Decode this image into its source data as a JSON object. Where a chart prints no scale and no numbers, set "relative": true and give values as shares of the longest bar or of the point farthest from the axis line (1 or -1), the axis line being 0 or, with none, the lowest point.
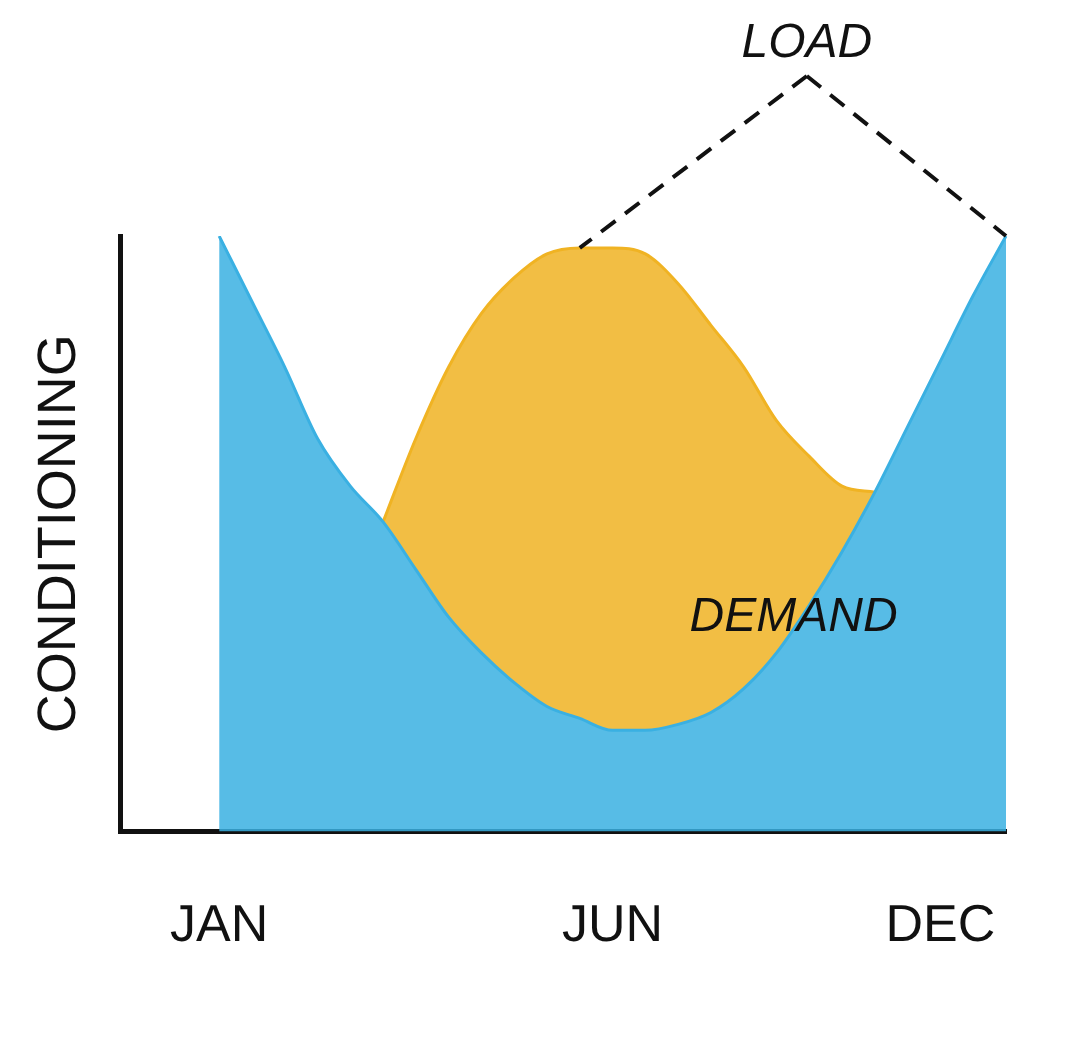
{
  "chart_data": {
    "type": "area",
    "relative": true,
    "ylabel": "CONDITIONING",
    "annotations": [
      "LOAD",
      "DEMAND"
    ],
    "grid": false,
    "legend": false,
    "categories": [
      null,
      null,
      null,
      "JAN",
      null,
      null,
      null,
      null,
      null,
      null,
      null,
      null,
      null,
      null,
      null,
      "JUN",
      null,
      null,
      null,
      null,
      null,
      null,
      null,
      null,
      null,
      "DEC",
      null,
      null
    ],
    "series": [
      {
        "color": "#3ab0e2",
        "values": [
          null,
          null,
          null,
          1.0,
          0.89,
          0.78,
          0.66,
          0.58,
          0.52,
          0.44,
          0.36,
          0.3,
          0.25,
          0.21,
          0.19,
          0.17,
          0.17,
          0.18,
          0.2,
          0.24,
          0.3,
          0.38,
          0.47,
          0.57,
          0.68,
          0.79,
          0.9,
          1.0
        ]
      },
      {
        "color": "#f0b323",
        "values": [
          null,
          null,
          null,
          null,
          null,
          null,
          null,
          null,
          0.52,
          0.66,
          0.78,
          0.87,
          0.93,
          0.97,
          0.98,
          0.98,
          0.97,
          0.92,
          0.85,
          0.78,
          0.69,
          0.63,
          0.58,
          0.57,
          null,
          null,
          null,
          null
        ]
      }
    ]
  }
}
